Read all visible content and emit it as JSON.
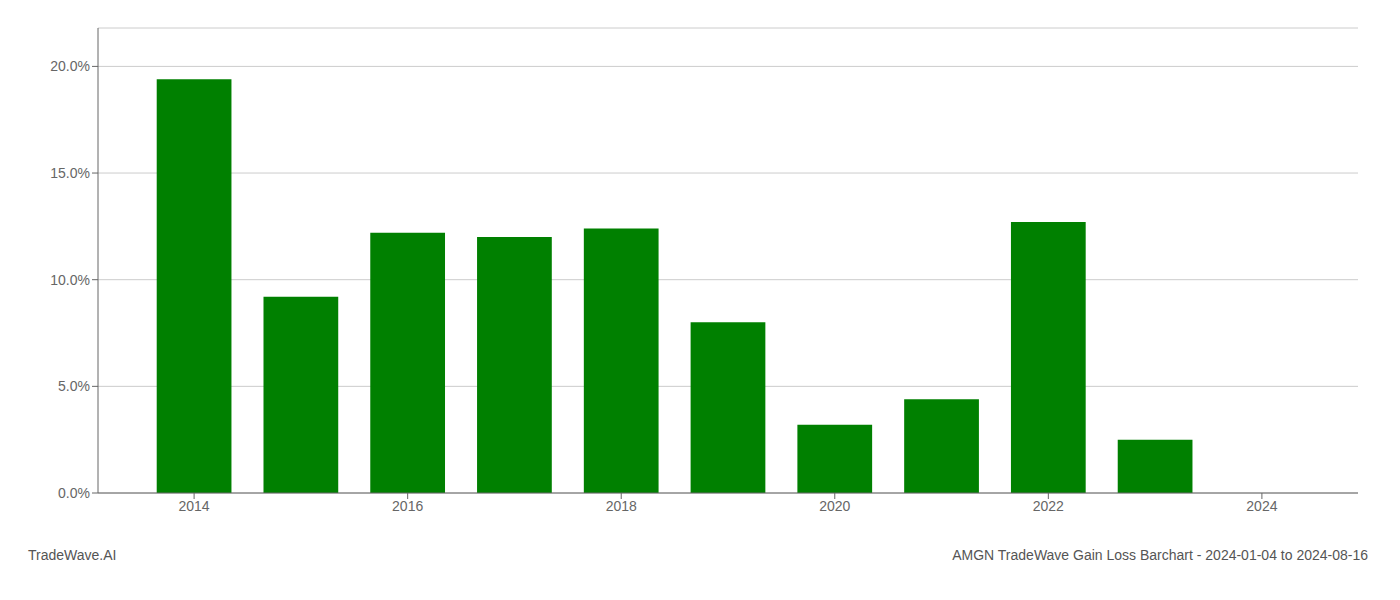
{
  "chart_data": {
    "type": "bar",
    "title": "AMGN TradeWave Gain Loss Barchart - 2024-01-04 to 2024-08-16",
    "annotations": [
      "TradeWave.AI"
    ],
    "x": [
      2014,
      2015,
      2016,
      2017,
      2018,
      2019,
      2020,
      2021,
      2022,
      2023
    ],
    "values": [
      0.194,
      0.092,
      0.122,
      0.12,
      0.124,
      0.08,
      0.032,
      0.044,
      0.127,
      0.025
    ],
    "color": "#008000",
    "xlim": [
      2013.1,
      2024.9
    ],
    "xticks": [
      2014,
      2016,
      2018,
      2020,
      2022,
      2024
    ],
    "ylim": [
      0,
      0.218
    ],
    "yticks": [
      {
        "value": 0.0,
        "label": "0.0%"
      },
      {
        "value": 0.05,
        "label": "5.0%"
      },
      {
        "value": 0.1,
        "label": "10.0%"
      },
      {
        "value": 0.15,
        "label": "15.0%"
      },
      {
        "value": 0.2,
        "label": "20.0%"
      }
    ],
    "grid": true
  }
}
